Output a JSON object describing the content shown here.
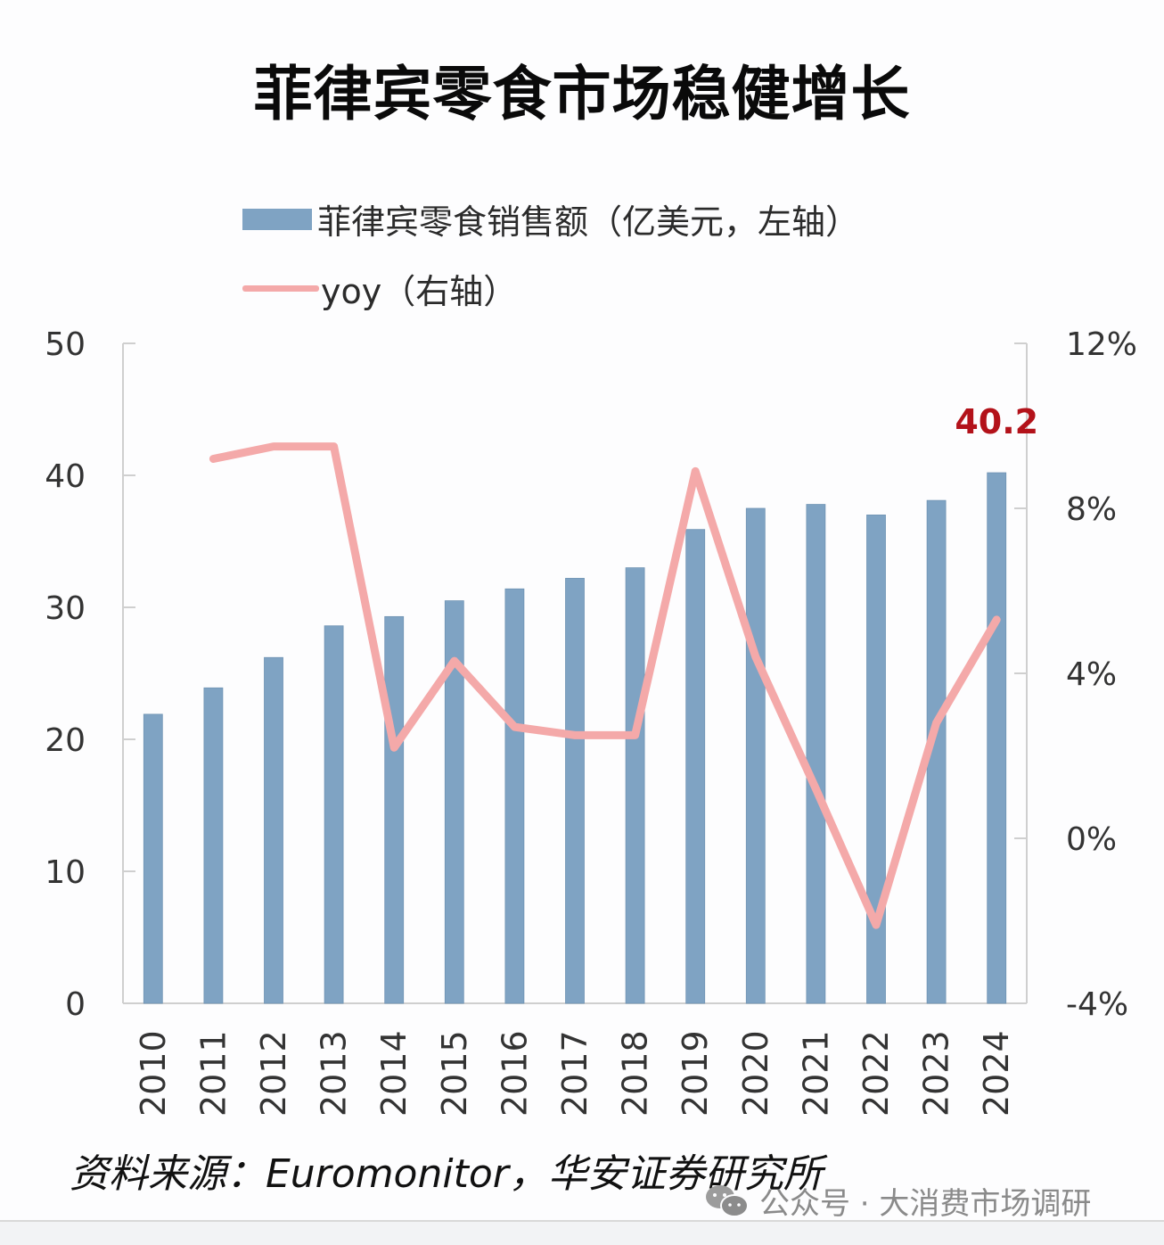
{
  "title": "菲律宾零食市场稳健增长",
  "legend": {
    "bar_label": "菲律宾零食销售额（亿美元，左轴）",
    "line_label": "yoy（右轴）"
  },
  "source": "资料来源：Euromonitor，华安证券研究所",
  "watermark": {
    "icon": "wechat-icon",
    "text": "公众号 · 大消费市场调研"
  },
  "colors": {
    "bar": "#7fa3c3",
    "line": "#f4a9a9",
    "annotation": "#b3121a",
    "axis": "#cfcfcf"
  },
  "chart_data": {
    "type": "bar+line",
    "title": "菲律宾零食市场稳健增长",
    "categories": [
      "2010",
      "2011",
      "2012",
      "2013",
      "2014",
      "2015",
      "2016",
      "2017",
      "2018",
      "2019",
      "2020",
      "2021",
      "2022",
      "2023",
      "2024"
    ],
    "series": [
      {
        "name": "菲律宾零食销售额（亿美元，左轴）",
        "type": "bar",
        "axis": "left",
        "values": [
          21.9,
          23.9,
          26.2,
          28.6,
          29.3,
          30.5,
          31.4,
          32.2,
          33.0,
          35.9,
          37.5,
          37.8,
          37.0,
          38.1,
          40.2
        ]
      },
      {
        "name": "yoy（右轴）",
        "type": "line",
        "axis": "right",
        "unit": "%",
        "values": [
          null,
          9.2,
          9.5,
          9.5,
          2.2,
          4.3,
          2.7,
          2.5,
          2.5,
          8.9,
          4.4,
          1.2,
          -2.1,
          2.8,
          5.3
        ]
      }
    ],
    "left_axis": {
      "ylim": [
        0,
        50
      ],
      "ticks": [
        "0",
        "10",
        "20",
        "30",
        "40",
        "50"
      ]
    },
    "right_axis": {
      "ylim": [
        -4,
        12
      ],
      "ticks": [
        "-4%",
        "0%",
        "4%",
        "8%",
        "12%"
      ]
    },
    "annotations": [
      {
        "category": "2024",
        "text": "40.2"
      }
    ],
    "legend_position": "top",
    "grid": false
  }
}
